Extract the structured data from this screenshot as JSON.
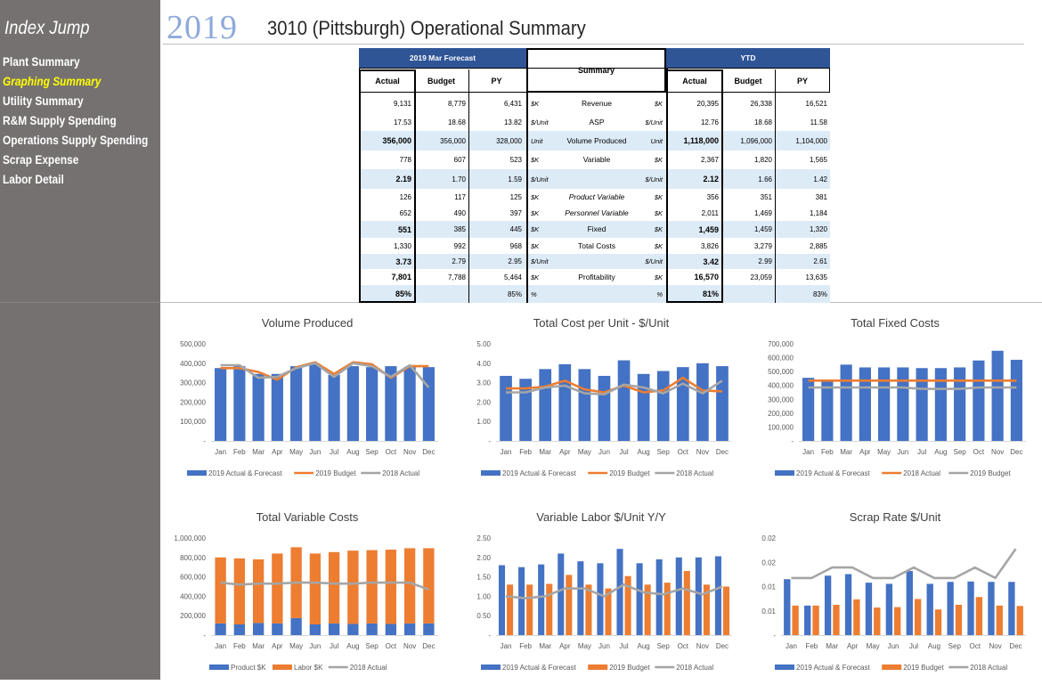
{
  "sidebar": {
    "index_jump": "Index Jump",
    "items": [
      {
        "label": "Plant Summary",
        "active": false
      },
      {
        "label": "Graphing Summary",
        "active": true
      },
      {
        "label": "Utility Summary",
        "active": false
      },
      {
        "label": "R&M Supply Spending",
        "active": false
      },
      {
        "label": "Operations Supply Spending",
        "active": false
      },
      {
        "label": "Scrap Expense",
        "active": false
      },
      {
        "label": "Labor Detail",
        "active": false
      }
    ]
  },
  "header": {
    "year": "2019",
    "title": "3010 (Pittsburgh) Operational Summary"
  },
  "summary": {
    "forecast_header": "2019 Mar Forecast",
    "summary_header": "Summary",
    "ytd_header": "YTD",
    "col_headers": {
      "actual": "Actual",
      "budget": "Budget",
      "py": "PY"
    },
    "rows": [
      {
        "metric": "Revenue",
        "lu": "$K",
        "ru": "$K",
        "f": [
          "9,131",
          "8,779",
          "6,431"
        ],
        "y": [
          "20,395",
          "26,338",
          "16,521"
        ],
        "bold": false,
        "band": false
      },
      {
        "metric": "ASP",
        "lu": "$/Unit",
        "ru": "$/Unit",
        "f": [
          "17.53",
          "18.68",
          "13.82"
        ],
        "y": [
          "12.76",
          "18.68",
          "11.58"
        ],
        "bold": false,
        "band": false
      },
      {
        "metric": "Volume Produced",
        "lu": "Unit",
        "ru": "Unit",
        "f": [
          "356,000",
          "356,000",
          "328,000"
        ],
        "y": [
          "1,118,000",
          "1,096,000",
          "1,104,000"
        ],
        "bold": true,
        "band": true
      },
      {
        "metric": "Variable",
        "lu": "$K",
        "ru": "$K",
        "f": [
          "778",
          "607",
          "523"
        ],
        "y": [
          "2,367",
          "1,820",
          "1,565"
        ],
        "bold": false,
        "band": false
      },
      {
        "metric": "",
        "lu": "$/Unit",
        "ru": "$/Unit",
        "f": [
          "2.19",
          "1.70",
          "1.59"
        ],
        "y": [
          "2.12",
          "1.66",
          "1.42"
        ],
        "bold": true,
        "band": true
      },
      {
        "metric": "Product Variable",
        "lu": "$K",
        "ru": "$K",
        "f": [
          "126",
          "117",
          "125"
        ],
        "y": [
          "356",
          "351",
          "381"
        ],
        "bold": false,
        "band": false,
        "italic": true
      },
      {
        "metric": "Personnel Variable",
        "lu": "$K",
        "ru": "$K",
        "f": [
          "652",
          "490",
          "397"
        ],
        "y": [
          "2,011",
          "1,469",
          "1,184"
        ],
        "bold": false,
        "band": false,
        "italic": true
      },
      {
        "metric": "Fixed",
        "lu": "$K",
        "ru": "$K",
        "f": [
          "551",
          "385",
          "445"
        ],
        "y": [
          "1,459",
          "1,459",
          "1,320"
        ],
        "bold": true,
        "band": true
      },
      {
        "metric": "Total Costs",
        "lu": "$K",
        "ru": "$K",
        "f": [
          "1,330",
          "992",
          "968"
        ],
        "y": [
          "3,826",
          "3,279",
          "2,885"
        ],
        "bold": false,
        "band": false
      },
      {
        "metric": "",
        "lu": "$/Unit",
        "ru": "$/Unit",
        "f": [
          "3.73",
          "2.79",
          "2.95"
        ],
        "y": [
          "3.42",
          "2.99",
          "2.61"
        ],
        "bold": true,
        "band": true
      },
      {
        "metric": "Profitability",
        "lu": "$K",
        "ru": "$K",
        "f": [
          "7,801",
          "7,788",
          "5,464"
        ],
        "y": [
          "16,570",
          "23,059",
          "13,635"
        ],
        "bold": true,
        "band": false
      },
      {
        "metric": "",
        "lu": "%",
        "ru": "%",
        "f": [
          "85%",
          "",
          "85%"
        ],
        "y": [
          "81%",
          "",
          "83%"
        ],
        "bold": true,
        "band": true
      }
    ]
  },
  "colors": {
    "blue": "#4472c4",
    "orange": "#ed7d31",
    "gray": "#a5a5a5",
    "header_blue": "#2f5597",
    "band": "#ddebf7",
    "sidebar": "#767171",
    "highlight": "#ffff00"
  },
  "chart_data": [
    {
      "title": "Volume Produced",
      "type": "bar+line",
      "categories": [
        "Jan",
        "Feb",
        "Mar",
        "Apr",
        "May",
        "Jun",
        "Jul",
        "Aug",
        "Sep",
        "Oct",
        "Nov",
        "Dec"
      ],
      "yticks": [
        "500,000",
        "400,000",
        "300,000",
        "200,000",
        "100,000",
        "-"
      ],
      "ylim": [
        0,
        500000
      ],
      "bars": [
        {
          "name": "2019 Actual & Forecast",
          "values": [
            375000,
            385000,
            345000,
            345000,
            385000,
            395000,
            340000,
            385000,
            380000,
            385000,
            380000,
            380000
          ]
        }
      ],
      "lines": [
        {
          "name": "2019 Budget",
          "color": "#ed7d31",
          "values": [
            375000,
            375000,
            355000,
            315000,
            380000,
            405000,
            345000,
            405000,
            395000,
            325000,
            385000,
            385000
          ]
        },
        {
          "name": "2018 Actual",
          "color": "#a5a5a5",
          "values": [
            390000,
            390000,
            325000,
            330000,
            375000,
            400000,
            330000,
            400000,
            385000,
            330000,
            390000,
            275000
          ]
        }
      ],
      "legend": [
        {
          "label": "2019 Actual & Forecast",
          "kind": "bar",
          "color": "#4472c4"
        },
        {
          "label": "2019 Budget",
          "kind": "line",
          "color": "#ed7d31"
        },
        {
          "label": "2018 Actual",
          "kind": "line",
          "color": "#a5a5a5"
        }
      ]
    },
    {
      "title": "Total Cost per Unit - $/Unit",
      "type": "bar+line",
      "categories": [
        "Jan",
        "Feb",
        "Mar",
        "Apr",
        "May",
        "Jun",
        "Jul",
        "Aug",
        "Sep",
        "Oct",
        "Nov",
        "Dec"
      ],
      "yticks": [
        "5.00",
        "4.00",
        "3.00",
        "2.00",
        "1.00",
        "-"
      ],
      "ylim": [
        0,
        5
      ],
      "bars": [
        {
          "name": "2019 Actual & Forecast",
          "values": [
            3.35,
            3.2,
            3.7,
            3.95,
            3.7,
            3.35,
            4.15,
            3.45,
            3.6,
            3.8,
            4.0,
            3.85
          ]
        }
      ],
      "lines": [
        {
          "name": "2019 Budget",
          "color": "#ed7d31",
          "values": [
            2.7,
            2.7,
            2.8,
            3.1,
            2.65,
            2.5,
            2.85,
            2.5,
            2.6,
            3.25,
            2.6,
            2.55
          ]
        },
        {
          "name": "2018 Actual",
          "color": "#a5a5a5",
          "values": [
            2.5,
            2.5,
            2.75,
            2.85,
            2.45,
            2.4,
            2.9,
            2.75,
            2.45,
            2.95,
            2.45,
            3.1
          ]
        }
      ],
      "legend": [
        {
          "label": "2019 Actual & Forecast",
          "kind": "bar",
          "color": "#4472c4"
        },
        {
          "label": "2019 Budget",
          "kind": "line",
          "color": "#ed7d31"
        },
        {
          "label": "2018 Actual",
          "kind": "line",
          "color": "#a5a5a5"
        }
      ]
    },
    {
      "title": "Total Fixed Costs",
      "type": "bar+line",
      "categories": [
        "Jan",
        "Feb",
        "Mar",
        "Apr",
        "May",
        "Jun",
        "Jul",
        "Aug",
        "Sep",
        "Oct",
        "Nov",
        "Dec"
      ],
      "yticks": [
        "700,000",
        "600,000",
        "500,000",
        "400,000",
        "300,000",
        "200,000",
        "100,000",
        "-"
      ],
      "ylim": [
        0,
        700000
      ],
      "bars": [
        {
          "name": "2019 Actual & Forecast",
          "values": [
            455000,
            440000,
            550000,
            530000,
            530000,
            530000,
            525000,
            525000,
            530000,
            580000,
            650000,
            585000
          ]
        }
      ],
      "lines": [
        {
          "name": "2018 Actual",
          "color": "#ed7d31",
          "values": [
            435000,
            435000,
            435000,
            435000,
            435000,
            435000,
            435000,
            435000,
            435000,
            435000,
            435000,
            435000
          ]
        },
        {
          "name": "2019 Budget",
          "color": "#a5a5a5",
          "values": [
            385000,
            385000,
            385000,
            385000,
            385000,
            385000,
            375000,
            375000,
            375000,
            385000,
            385000,
            385000
          ]
        }
      ],
      "legend": [
        {
          "label": "2019 Actual & Forecast",
          "kind": "bar",
          "color": "#4472c4"
        },
        {
          "label": "2018 Actual",
          "kind": "line",
          "color": "#ed7d31"
        },
        {
          "label": "2019 Budget",
          "kind": "line",
          "color": "#a5a5a5"
        }
      ]
    },
    {
      "title": "Total Variable Costs",
      "type": "stacked-bar+line",
      "categories": [
        "Jan",
        "Feb",
        "Mar",
        "Apr",
        "May",
        "Jun",
        "Jul",
        "Aug",
        "Sep",
        "Oct",
        "Nov",
        "Dec"
      ],
      "yticks": [
        "1,000,000",
        "800,000",
        "600,000",
        "400,000",
        "200,000",
        "-"
      ],
      "ylim": [
        0,
        1000000
      ],
      "stack": [
        {
          "name": "Product $K",
          "color": "#4472c4",
          "values": [
            120000,
            110000,
            125000,
            120000,
            175000,
            110000,
            120000,
            115000,
            120000,
            115000,
            120000,
            120000
          ]
        },
        {
          "name": "Labor $K",
          "color": "#ed7d31",
          "values": [
            680000,
            680000,
            655000,
            720000,
            730000,
            730000,
            735000,
            755000,
            755000,
            765000,
            775000,
            775000
          ]
        }
      ],
      "lines": [
        {
          "name": "2018 Actual",
          "color": "#a5a5a5",
          "values": [
            540000,
            520000,
            530000,
            530000,
            540000,
            540000,
            530000,
            530000,
            540000,
            540000,
            540000,
            470000
          ]
        }
      ],
      "legend": [
        {
          "label": "Product $K",
          "kind": "bar",
          "color": "#4472c4"
        },
        {
          "label": "Labor $K",
          "kind": "bar",
          "color": "#ed7d31"
        },
        {
          "label": "2018 Actual",
          "kind": "line",
          "color": "#a5a5a5"
        }
      ]
    },
    {
      "title": "Variable Labor $/Unit Y/Y",
      "type": "clustered-bar+line",
      "categories": [
        "Jan",
        "Feb",
        "Mar",
        "Apr",
        "May",
        "Jun",
        "Jul",
        "Aug",
        "Sep",
        "Oct",
        "Nov",
        "Dec"
      ],
      "yticks": [
        "2.50",
        "2.00",
        "1.50",
        "1.00",
        "0.50",
        "-"
      ],
      "ylim": [
        0,
        2.5
      ],
      "clusters": [
        {
          "name": "2019 Actual & Forecast",
          "color": "#4472c4",
          "values": [
            1.8,
            1.75,
            1.82,
            2.1,
            1.9,
            1.85,
            2.22,
            1.85,
            1.95,
            2.0,
            2.0,
            2.03
          ]
        },
        {
          "name": "2019 Budget",
          "color": "#ed7d31",
          "values": [
            1.3,
            1.3,
            1.32,
            1.55,
            1.3,
            1.2,
            1.52,
            1.3,
            1.35,
            1.65,
            1.3,
            1.25
          ]
        }
      ],
      "lines": [
        {
          "name": "2018 Actual",
          "color": "#a5a5a5",
          "values": [
            1.0,
            0.95,
            1.0,
            1.2,
            1.2,
            1.0,
            1.3,
            1.1,
            1.05,
            1.2,
            1.05,
            1.25
          ]
        }
      ],
      "legend": [
        {
          "label": "2019 Actual & Forecast",
          "kind": "bar",
          "color": "#4472c4"
        },
        {
          "label": "2019 Budget",
          "kind": "bar",
          "color": "#ed7d31"
        },
        {
          "label": "2018 Actual",
          "kind": "line",
          "color": "#a5a5a5"
        }
      ]
    },
    {
      "title": "Scrap Rate $/Unit",
      "type": "clustered-bar+line",
      "categories": [
        "Jan",
        "Feb",
        "Mar",
        "Apr",
        "May",
        "Jun",
        "Jul",
        "Aug",
        "Sep",
        "Oct",
        "Nov",
        "Dec"
      ],
      "yticks": [
        "0.02",
        "0.02",
        "0.01",
        "0.01",
        "-"
      ],
      "ylim": [
        0,
        0.025
      ],
      "clusters": [
        {
          "name": "2019 Actual & Forecast",
          "color": "#4472c4",
          "values": [
            0.0144,
            0.0076,
            0.0153,
            0.0157,
            0.0135,
            0.0132,
            0.0165,
            0.0132,
            0.0137,
            0.0138,
            0.0137,
            0.0137
          ]
        },
        {
          "name": "2019 Budget",
          "color": "#ed7d31",
          "values": [
            0.0076,
            0.0076,
            0.0078,
            0.0092,
            0.0071,
            0.0072,
            0.0093,
            0.0066,
            0.0078,
            0.0098,
            0.0076,
            0.0075
          ]
        }
      ],
      "lines": [
        {
          "name": "2018 Actual",
          "color": "#a5a5a5",
          "values": [
            0.0147,
            0.0147,
            0.0174,
            0.0174,
            0.0147,
            0.0147,
            0.0174,
            0.0147,
            0.0147,
            0.0174,
            0.0147,
            0.0222
          ]
        }
      ],
      "legend": [
        {
          "label": "2019 Actual & Forecast",
          "kind": "bar",
          "color": "#4472c4"
        },
        {
          "label": "2019 Budget",
          "kind": "bar",
          "color": "#ed7d31"
        },
        {
          "label": "2018 Actual",
          "kind": "line",
          "color": "#a5a5a5"
        }
      ]
    }
  ]
}
